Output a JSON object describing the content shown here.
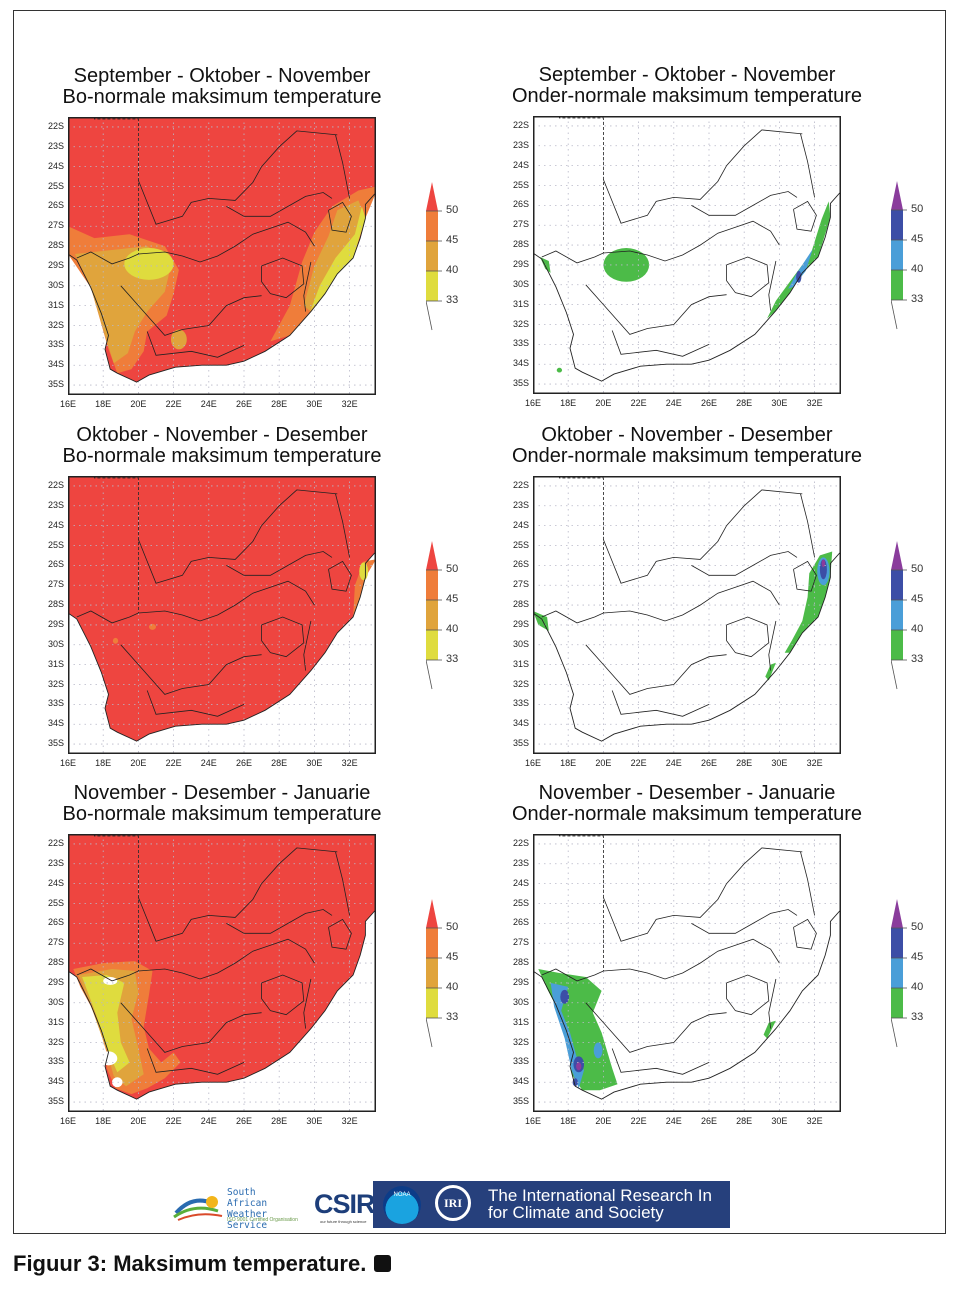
{
  "panels": [
    {
      "title1": "September - Oktober - November",
      "title2": "Bo-normale maksimum temperature",
      "kind": "above"
    },
    {
      "title1": "September - Oktober - November",
      "title2": "Onder-normale maksimum temperature",
      "kind": "below"
    },
    {
      "title1": "Oktober - November - Desember",
      "title2": "Bo-normale maksimum temperature",
      "kind": "above"
    },
    {
      "title1": "Oktober - November - Desember",
      "title2": "Onder-normale maksimum temperature",
      "kind": "below"
    },
    {
      "title1": "November - Desember - Januarie",
      "title2": "Bo-normale maksimum temperature",
      "kind": "above"
    },
    {
      "title1": "November - Desember - Januarie",
      "title2": "Onder-normale maksimum temperature",
      "kind": "below"
    }
  ],
  "lat_ticks": [
    "22S",
    "23S",
    "24S",
    "25S",
    "26S",
    "27S",
    "28S",
    "29S",
    "30S",
    "31S",
    "32S",
    "33S",
    "34S",
    "35S"
  ],
  "lon_ticks": [
    "16E",
    "18E",
    "20E",
    "22E",
    "24E",
    "26E",
    "28E",
    "30E",
    "32E"
  ],
  "legend_labels": [
    "50",
    "45",
    "40",
    "33"
  ],
  "colors": {
    "above": [
      "#ee4540",
      "#ef7d3a",
      "#e0a43c",
      "#dfdc3e"
    ],
    "below": [
      "#8a3c9c",
      "#3c4ea6",
      "#4a9ed8",
      "#4cbb48"
    ]
  },
  "logos": {
    "saws": "South African Weather Service",
    "saws_sub": "ISO 9001 Certified Organisation",
    "csir": "CSIR",
    "csir_sub": "our future through science",
    "noaa": "NOAA",
    "iri_mark": "IRI",
    "iri_line1": "The International Research In",
    "iri_line2": "for Climate and Society"
  },
  "caption": "Figuur 3: Maksimum temperature."
}
